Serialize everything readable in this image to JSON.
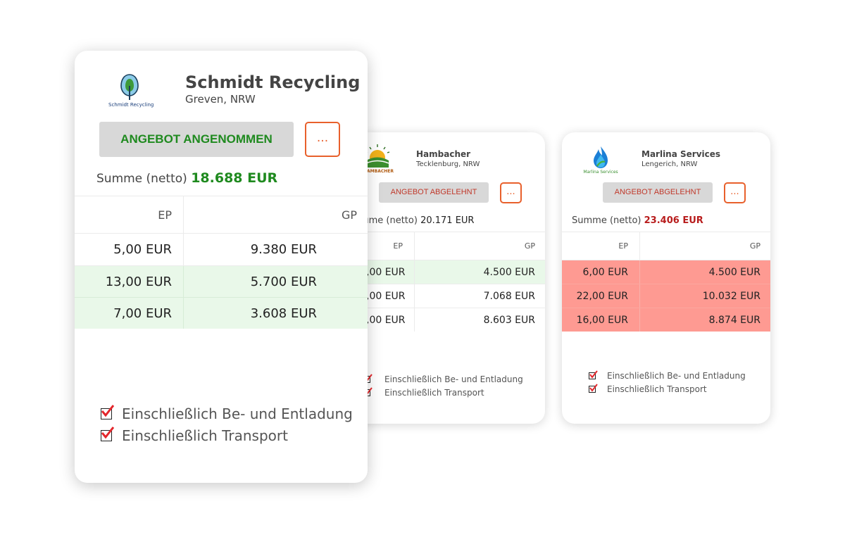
{
  "cards": [
    {
      "name": "Schmidt Recycling",
      "location": "Greven, NRW",
      "logo_caption": "Schmidt Recycling",
      "status": "ANGEBOT ANGENOMMEN",
      "status_color": "#1f8a1f",
      "more_label": "...",
      "sum_label": "Summe (netto)",
      "sum_value": "18.688 EUR",
      "sum_color": "#1f8a1f",
      "col_ep": "EP",
      "col_gp": "GP",
      "rows": [
        {
          "ep": "5,00 EUR",
          "gp": "9.380 EUR"
        },
        {
          "ep": "13,00 EUR",
          "gp": "5.700 EUR"
        },
        {
          "ep": "7,00 EUR",
          "gp": "3.608 EUR"
        }
      ],
      "checks": [
        "Einschließlich Be- und Entladung",
        "Einschließlich Transport"
      ]
    },
    {
      "name": "Hambacher",
      "location": "Tecklenburg, NRW",
      "logo_caption": "HAMBACHER",
      "status": "ANGEBOT ABGELEHNT",
      "status_color": "#c0392b",
      "more_label": "...",
      "sum_label": "ıme (netto)",
      "sum_value": "20.171 EUR",
      "sum_color": "#222222",
      "col_ep": "EP",
      "col_gp": "GP",
      "rows": [
        {
          "ep": ",00 EUR",
          "gp": "4.500  EUR"
        },
        {
          "ep": ",00 EUR",
          "gp": "7.068 EUR"
        },
        {
          "ep": ",00 EUR",
          "gp": "8.603 EUR"
        }
      ],
      "checks": [
        "Einschließlich Be- und Entladung",
        "Einschließlich Transport"
      ]
    },
    {
      "name": "Marlina Services",
      "location": "Lengerich, NRW",
      "logo_caption": "Marlina Services",
      "status": "ANGEBOT ABGELEHNT",
      "status_color": "#c0392b",
      "more_label": "...",
      "sum_label": "Summe (netto)",
      "sum_value": "23.406 EUR",
      "sum_color": "#b81d1d",
      "col_ep": "EP",
      "col_gp": "GP",
      "rows": [
        {
          "ep": "6,00 EUR",
          "gp": "4.500 EUR"
        },
        {
          "ep": "22,00 EUR",
          "gp": "10.032 EUR"
        },
        {
          "ep": "16,00 EUR",
          "gp": "8.874 EUR"
        }
      ],
      "checks": [
        "Einschließlich Be- und Entladung",
        "Einschließlich Transport"
      ]
    }
  ],
  "colors": {
    "accepted_row": "#e9f8e9",
    "rejected_row": "#fe9a92",
    "more_border": "#e8602c",
    "check_mark": "#e3262b"
  },
  "icons": [
    "tree-logo-icon",
    "sunrise-logo-icon",
    "flame-logo-icon",
    "checkbox-checked-icon"
  ]
}
